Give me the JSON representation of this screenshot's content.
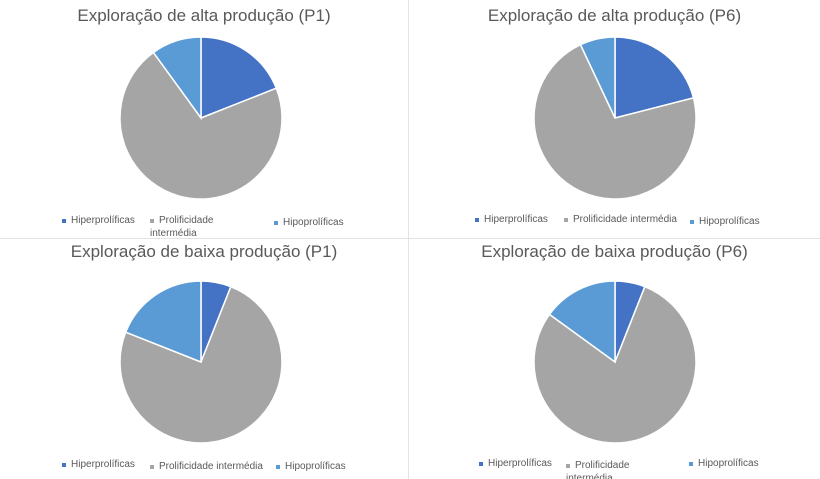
{
  "colors": {
    "hiper": "#4472C4",
    "inter": "#A5A5A5",
    "hipo": "#5B9BD5"
  },
  "chart_data": [
    {
      "type": "pie",
      "title": "Exploração de alta produção (P1)",
      "labels": [
        "Hiperprolíficas",
        "Prolificidade intermédia",
        "Hipoprolíficas"
      ],
      "values": [
        19,
        71,
        10
      ],
      "legend": "bottom"
    },
    {
      "type": "pie",
      "title": "Exploração de alta produção (P6)",
      "labels": [
        "Hiperprolíficas",
        "Prolificidade intermédia",
        "Hipoprolíficas"
      ],
      "values": [
        21,
        72,
        7
      ],
      "legend": "bottom"
    },
    {
      "type": "pie",
      "title": "Exploração de baixa produção (P1)",
      "labels": [
        "Hiperprolíficas",
        "Prolificidade intermédia",
        "Hipoprolíficas"
      ],
      "values": [
        6,
        75,
        19
      ],
      "legend": "bottom"
    },
    {
      "type": "pie",
      "title": "Exploração de baixa produção (P6)",
      "labels": [
        "Hiperprolíficas",
        "Prolificidade intermédia",
        "Hipoprolíficas"
      ],
      "values": [
        6,
        79,
        15
      ],
      "legend": "bottom"
    }
  ]
}
